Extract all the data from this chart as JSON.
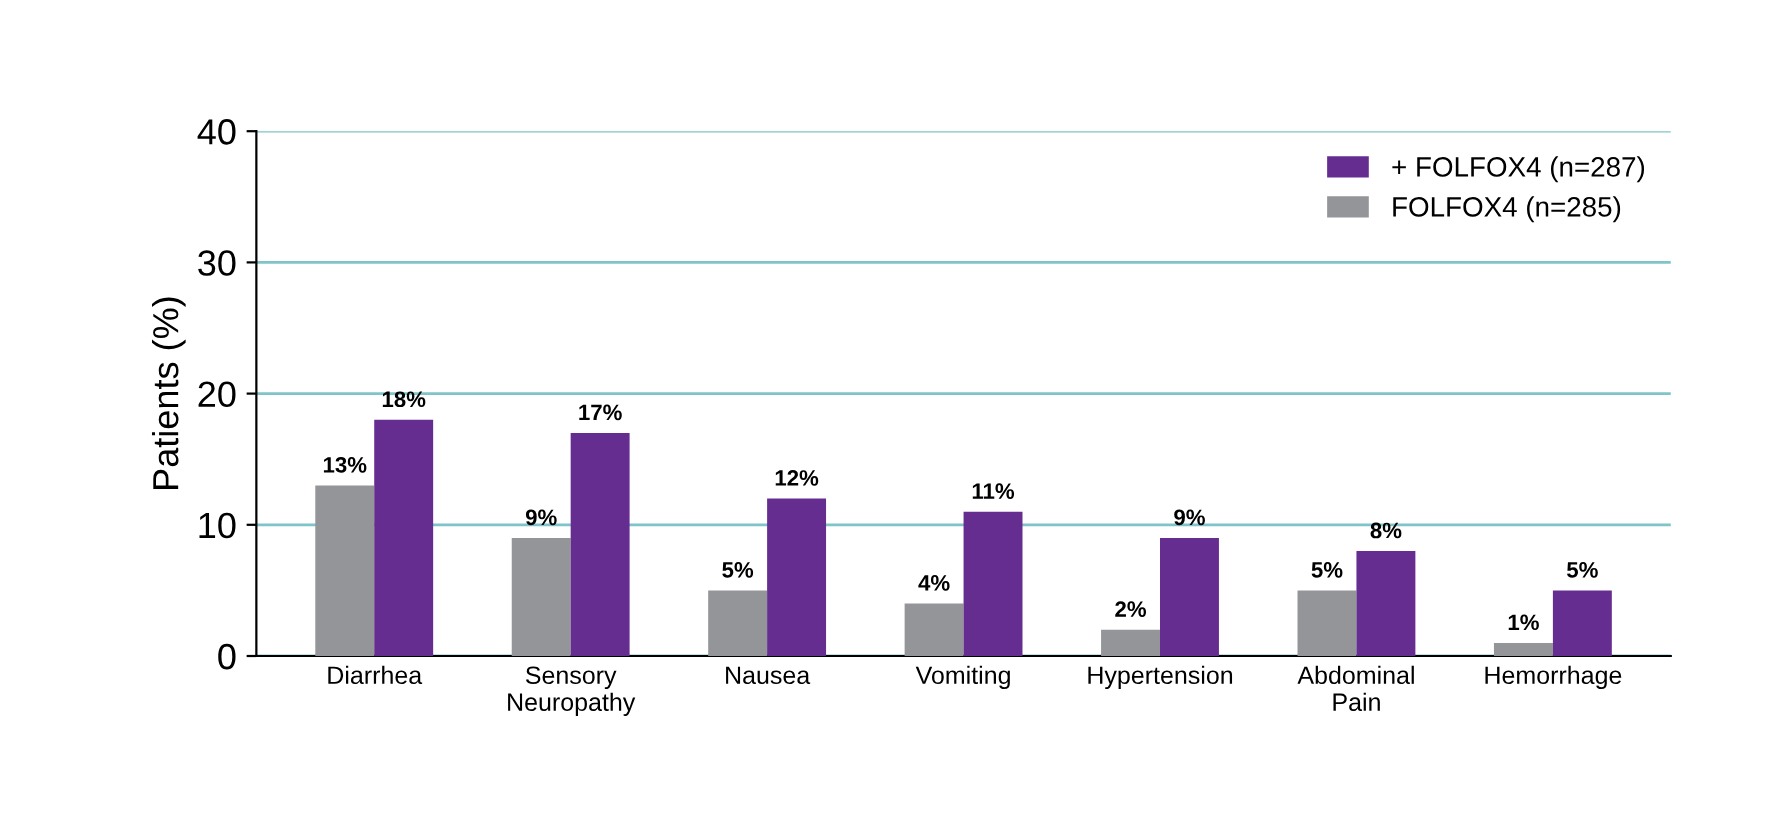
{
  "chart_data": {
    "type": "bar",
    "ylabel": "Patients (%)",
    "categories": [
      "Diarrhea",
      "Sensory\nNeuropathy",
      "Nausea",
      "Vomiting",
      "Hypertension",
      "Abdominal\nPain",
      "Hemorrhage"
    ],
    "series": [
      {
        "name": "FOLFOX4 (n=285)",
        "color": "#939598",
        "values": [
          13,
          9,
          5,
          4,
          2,
          5,
          1
        ],
        "value_labels": [
          "13%",
          "9%",
          "5%",
          "4%",
          "2%",
          "5%",
          "1%"
        ]
      },
      {
        "name": "+ FOLFOX4 (n=287)",
        "color": "#662d91",
        "values": [
          18,
          17,
          12,
          11,
          9,
          8,
          5
        ],
        "value_labels": [
          "18%",
          "17%",
          "12%",
          "11%",
          "9%",
          "8%",
          "5%"
        ]
      }
    ],
    "ylim": [
      0,
      40
    ],
    "yticks": [
      0,
      10,
      20,
      30,
      40
    ],
    "grid": "y",
    "legend": "top right"
  }
}
